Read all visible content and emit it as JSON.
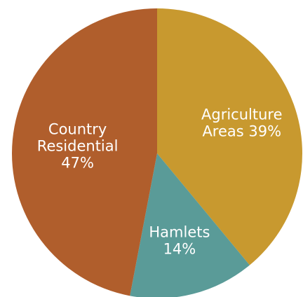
{
  "chart_data": {
    "type": "pie",
    "title": "",
    "categories": [
      "Agriculture Areas",
      "Hamlets",
      "Country Residential"
    ],
    "values": [
      39,
      14,
      47
    ],
    "colors": [
      "#C8992F",
      "#5A9B98",
      "#B05E2C"
    ],
    "labels": [
      [
        "Agriculture",
        "Areas 39%"
      ],
      [
        "Hamlets",
        "14%"
      ],
      [
        "Country",
        "Residential",
        "47%"
      ]
    ],
    "start_angle_deg": 0,
    "direction": "clockwise",
    "legend": "none"
  }
}
